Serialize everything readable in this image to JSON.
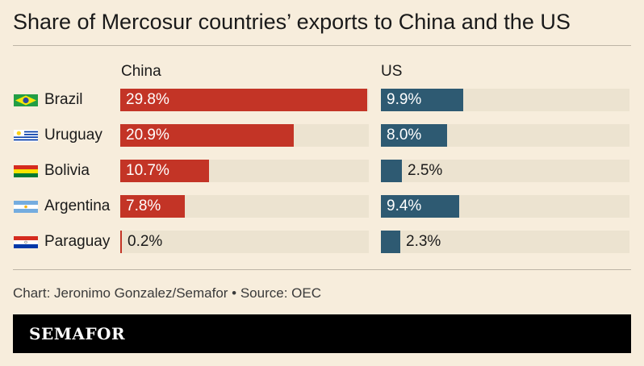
{
  "title": "Share of Mercosur countries’ exports to China and the US",
  "credit": "Chart: Jeronimo Gonzalez/Semafor • Source: OEC",
  "brand": "SEMAFOR",
  "colors": {
    "china": "#c33426",
    "us": "#2e5a72",
    "track": "#ece3d0",
    "background": "#f7eddc"
  },
  "chart_data": {
    "type": "bar",
    "orientation": "horizontal",
    "categories": [
      "Brazil",
      "Uruguay",
      "Bolivia",
      "Argentina",
      "Paraguay"
    ],
    "series": [
      {
        "name": "China",
        "values": [
          29.8,
          20.9,
          10.7,
          7.8,
          0.2
        ],
        "labels": [
          "29.8%",
          "20.9%",
          "10.7%",
          "7.8%",
          "0.2%"
        ]
      },
      {
        "name": "US",
        "values": [
          9.9,
          8.0,
          2.5,
          9.4,
          2.3
        ],
        "labels": [
          "9.9%",
          "8.0%",
          "2.5%",
          "9.4%",
          "2.3%"
        ]
      }
    ],
    "unit": "%",
    "xlim": [
      0,
      30
    ],
    "flags": [
      "brazil-flag-icon",
      "uruguay-flag-icon",
      "bolivia-flag-icon",
      "argentina-flag-icon",
      "paraguay-flag-icon"
    ]
  }
}
